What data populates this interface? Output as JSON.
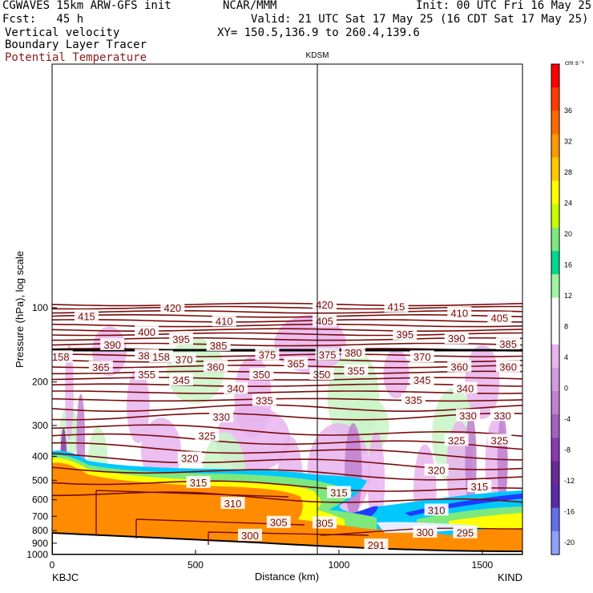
{
  "header": {
    "model": "CGWAVES 15km ARW-GFS init",
    "org": "NCAR/MMM",
    "init": "Init: 00 UTC Fri 16 May 25",
    "fcst": "Fcst:   45 h",
    "valid": "Valid: 21 UTC Sat 17 May 25 (16 CDT Sat 17 May 25)",
    "fields": [
      "Vertical velocity",
      "Boundary Layer Tracer",
      "Potential Temperature"
    ],
    "xy": "XY= 150.5,136.9 to 260.4,139.6"
  },
  "colors": {
    "theta": "#7a0a0a",
    "bl": "#ff8c00",
    "yellow": "#ffff00",
    "green": "#7de87d",
    "cyan": "#00c8ff",
    "blue": "#1e3cff",
    "uplight": "#c8f5c8",
    "downlight": "#e8b4ee",
    "downmid": "#c080d0",
    "downdark": "#8a3ab0"
  },
  "chart_data": {
    "type": "contour-cross-section",
    "title": "KDSM",
    "xlabel": "Distance (km)",
    "ylabel": "Pressure (hPa), log scale",
    "x_ticks": [
      0,
      500,
      1000,
      1500
    ],
    "y_ticks": [
      100,
      200,
      300,
      400,
      500,
      600,
      700,
      800,
      900,
      1000
    ],
    "x_range": [
      0,
      1640
    ],
    "endpoints": {
      "left": "KBJC",
      "right": "KIND"
    },
    "marker_x": 930,
    "colorbar": {
      "units": "cm s⁻¹",
      "ticks": [
        36,
        32,
        28,
        24,
        20,
        16,
        12,
        8,
        4,
        0,
        -4,
        -8,
        -12,
        -16,
        -20
      ],
      "colors": [
        "#ff0000",
        "#ff3c00",
        "#ff6a00",
        "#ff9a00",
        "#ffc800",
        "#ffff00",
        "#c8ff00",
        "#7de87d",
        "#00d68f",
        "#9ff59f",
        "#ffffff",
        "#ffffff",
        "#e8b4ee",
        "#d49ae0",
        "#c080d0",
        "#a460c0",
        "#8a3ab0",
        "#6a2a9a",
        "#5a2aa8",
        "#6070e8",
        "#8da0ff"
      ]
    },
    "theta_labels": [
      {
        "v": "415",
        "x": 120,
        "p": 108
      },
      {
        "v": "420",
        "x": 420,
        "p": 100
      },
      {
        "v": "410",
        "x": 600,
        "p": 113
      },
      {
        "v": "400",
        "x": 330,
        "p": 125
      },
      {
        "v": "395",
        "x": 450,
        "p": 134
      },
      {
        "v": "390",
        "x": 210,
        "p": 141
      },
      {
        "v": "385",
        "x": 580,
        "p": 142
      },
      {
        "v": "380",
        "x": 330,
        "p": 156
      },
      {
        "v": "375",
        "x": 750,
        "p": 155
      },
      {
        "v": "370",
        "x": 460,
        "p": 162
      },
      {
        "v": "365",
        "x": 170,
        "p": 174
      },
      {
        "v": "360",
        "x": 570,
        "p": 173
      },
      {
        "v": "355",
        "x": 330,
        "p": 186
      },
      {
        "v": "350",
        "x": 730,
        "p": 186
      },
      {
        "v": "345",
        "x": 450,
        "p": 196
      },
      {
        "v": "340",
        "x": 640,
        "p": 212
      },
      {
        "v": "335",
        "x": 740,
        "p": 237
      },
      {
        "v": "330",
        "x": 590,
        "p": 276
      },
      {
        "v": "325",
        "x": 540,
        "p": 330
      },
      {
        "v": "320",
        "x": 480,
        "p": 406
      },
      {
        "v": "315",
        "x": 510,
        "p": 510
      },
      {
        "v": "310",
        "x": 630,
        "p": 620
      },
      {
        "v": "305",
        "x": 790,
        "p": 740
      },
      {
        "v": "300",
        "x": 690,
        "p": 835
      },
      {
        "v": "420",
        "x": 950,
        "p": 97
      },
      {
        "v": "415",
        "x": 1200,
        "p": 99
      },
      {
        "v": "410",
        "x": 1420,
        "p": 105
      },
      {
        "v": "405",
        "x": 1560,
        "p": 110
      },
      {
        "v": "405",
        "x": 950,
        "p": 113
      },
      {
        "v": "395",
        "x": 1230,
        "p": 128
      },
      {
        "v": "390",
        "x": 1410,
        "p": 133
      },
      {
        "v": "385",
        "x": 1590,
        "p": 140
      },
      {
        "v": "375",
        "x": 960,
        "p": 155
      },
      {
        "v": "380",
        "x": 1050,
        "p": 152
      },
      {
        "v": "365",
        "x": 850,
        "p": 168
      },
      {
        "v": "370",
        "x": 1290,
        "p": 158
      },
      {
        "v": "360",
        "x": 1420,
        "p": 173
      },
      {
        "v": "360",
        "x": 1590,
        "p": 173
      },
      {
        "v": "350",
        "x": 940,
        "p": 186
      },
      {
        "v": "355",
        "x": 1060,
        "p": 180
      },
      {
        "v": "345",
        "x": 1290,
        "p": 196
      },
      {
        "v": "340",
        "x": 1440,
        "p": 212
      },
      {
        "v": "335",
        "x": 1260,
        "p": 236
      },
      {
        "v": "330",
        "x": 1450,
        "p": 273
      },
      {
        "v": "330",
        "x": 1570,
        "p": 273
      },
      {
        "v": "325",
        "x": 1410,
        "p": 344
      },
      {
        "v": "325",
        "x": 1560,
        "p": 344
      },
      {
        "v": "320",
        "x": 1340,
        "p": 455
      },
      {
        "v": "315",
        "x": 1490,
        "p": 530
      },
      {
        "v": "310",
        "x": 1340,
        "p": 660
      },
      {
        "v": "305",
        "x": 950,
        "p": 744
      },
      {
        "v": "315",
        "x": 1000,
        "p": 560
      },
      {
        "v": "300",
        "x": 1300,
        "p": 810
      },
      {
        "v": "295",
        "x": 1440,
        "p": 815
      },
      {
        "v": "291",
        "x": 1130,
        "p": 915
      },
      {
        "v": "158",
        "x": 30,
        "p": 158
      },
      {
        "v": "158",
        "x": 380,
        "p": 158
      }
    ]
  }
}
